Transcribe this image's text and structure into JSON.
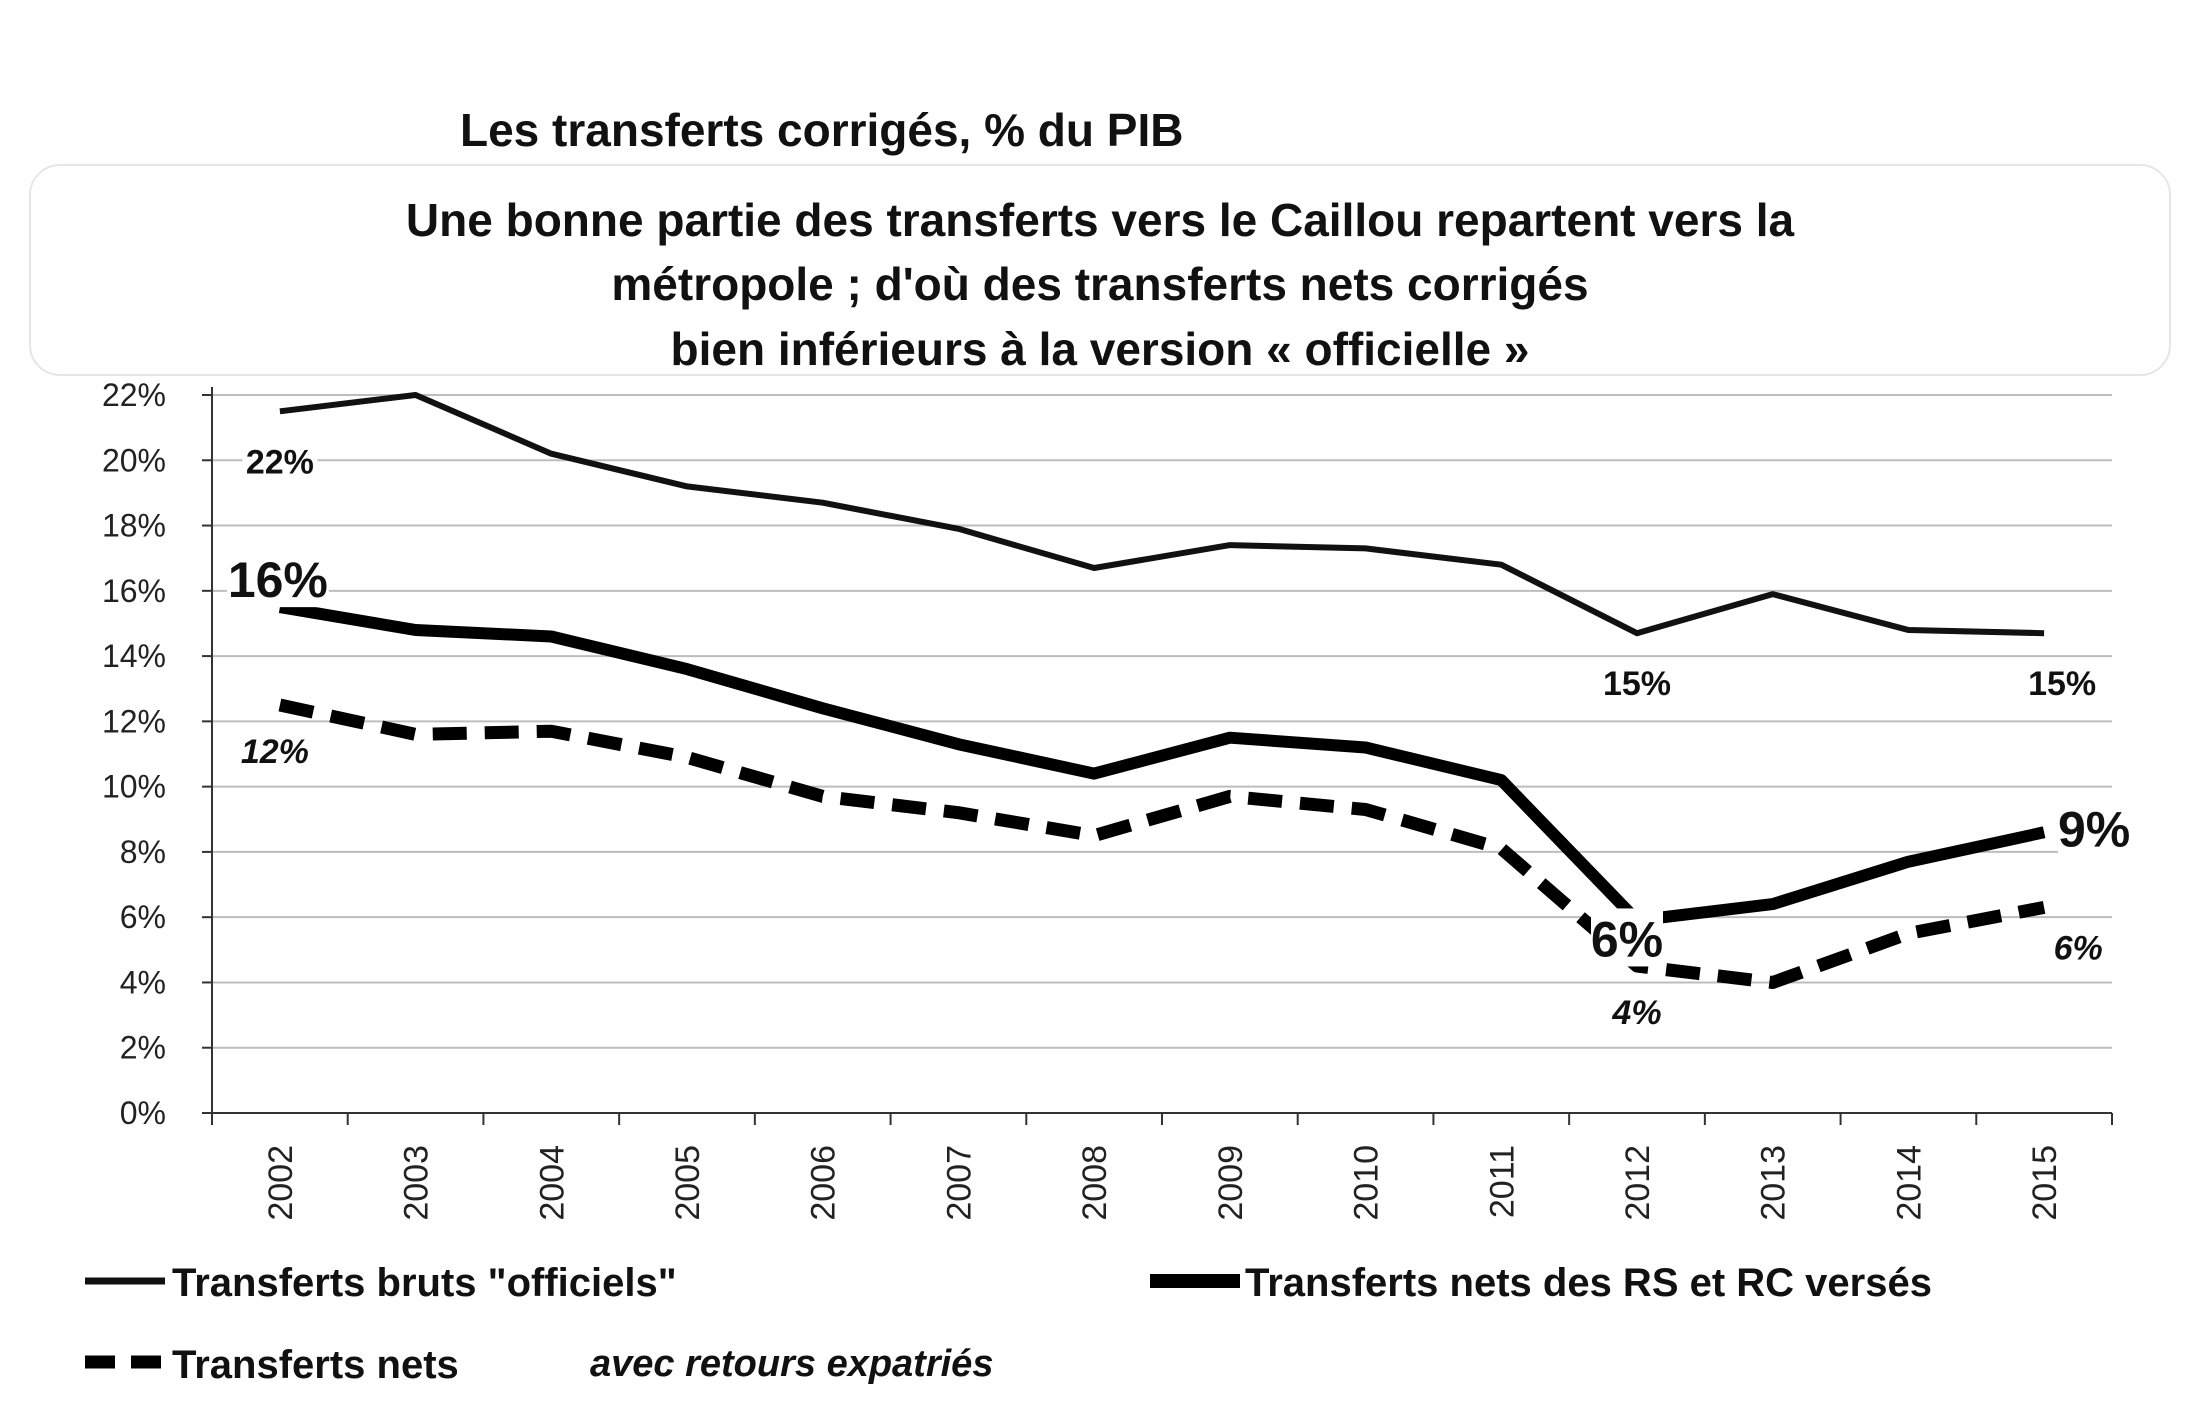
{
  "chart_data": {
    "type": "line",
    "title": "Les transferts corrigés, % du PIB",
    "subtitle_lines": [
      "Une bonne partie des transferts vers le Caillou repartent vers la",
      "métropole ; d'où des transferts nets corrigés",
      "bien inférieurs à la version « officielle »"
    ],
    "categories": [
      "2002",
      "2003",
      "2004",
      "2005",
      "2006",
      "2007",
      "2008",
      "2009",
      "2010",
      "2011",
      "2012",
      "2013",
      "2014",
      "2015"
    ],
    "ylim": [
      0,
      22
    ],
    "yticks": [
      "0%",
      "2%",
      "4%",
      "6%",
      "8%",
      "10%",
      "12%",
      "14%",
      "16%",
      "18%",
      "20%",
      "22%"
    ],
    "xlabel": "",
    "ylabel": "",
    "grid": true,
    "series": [
      {
        "name": "Transferts bruts \"officiels\"",
        "style": "solid",
        "values": [
          21.5,
          22.0,
          20.2,
          19.2,
          18.7,
          17.9,
          16.7,
          17.4,
          17.3,
          16.8,
          14.7,
          15.9,
          14.8,
          14.7
        ]
      },
      {
        "name": "Transferts nets des RS et RC versés",
        "style": "thick",
        "values": [
          15.5,
          14.8,
          14.6,
          13.6,
          12.4,
          11.3,
          10.4,
          11.5,
          11.2,
          10.2,
          5.9,
          6.4,
          7.7,
          8.6
        ]
      },
      {
        "name": "Transferts nets",
        "name_suffix": "avec retours expatriés",
        "style": "dashed",
        "values": [
          12.5,
          11.6,
          11.7,
          10.9,
          9.7,
          9.2,
          8.5,
          9.7,
          9.3,
          8.1,
          4.5,
          4.0,
          5.5,
          6.3
        ]
      }
    ],
    "annotations": [
      {
        "text": "22%",
        "series": 0,
        "index": 0,
        "style": "bold"
      },
      {
        "text": "15%",
        "series": 0,
        "index": 10,
        "style": "bold"
      },
      {
        "text": "15%",
        "series": 0,
        "index": 13,
        "style": "bold"
      },
      {
        "text": "16%",
        "series": 1,
        "index": 0,
        "style": "big"
      },
      {
        "text": "6%",
        "series": 1,
        "index": 10,
        "style": "big"
      },
      {
        "text": "9%",
        "series": 1,
        "index": 13,
        "style": "big"
      },
      {
        "text": "12%",
        "series": 2,
        "index": 0,
        "style": "italic"
      },
      {
        "text": "4%",
        "series": 2,
        "index": 10,
        "style": "italic"
      },
      {
        "text": "6%",
        "series": 2,
        "index": 13,
        "style": "italic"
      }
    ],
    "legend": {
      "placement": "bottom",
      "entries": [
        "Transferts bruts \"officiels\"",
        "Transferts nets des RS et RC versés",
        "Transferts nets"
      ],
      "suffix": "avec retours expatriés"
    }
  }
}
